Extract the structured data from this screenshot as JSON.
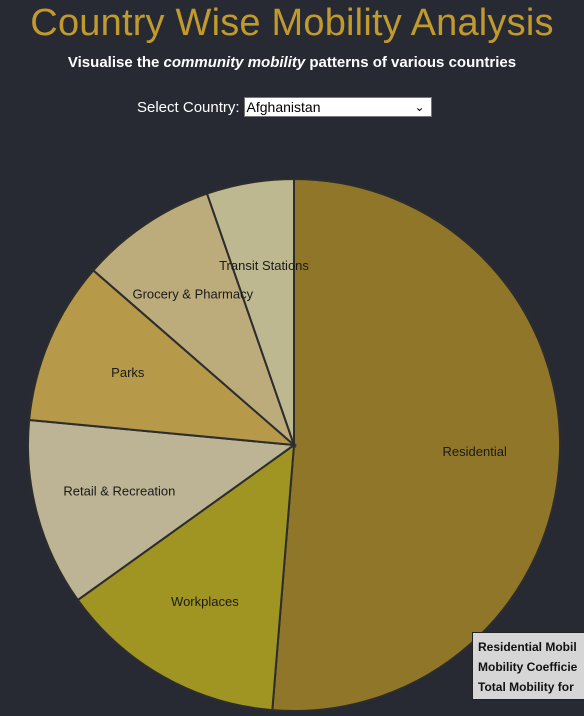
{
  "header": {
    "title": "Country Wise Mobility Analysis",
    "subtitle_pre": "Visualise the ",
    "subtitle_em": "community mobility",
    "subtitle_post": " patterns of various countries"
  },
  "country_select": {
    "label": "Select Country:",
    "selected": "Afghanistan"
  },
  "tooltip": {
    "lines": [
      "Residential Mobil",
      "Mobility Coefficie",
      "Total Mobility for"
    ]
  },
  "chart_data": {
    "type": "pie",
    "slices": [
      {
        "label": "Residential",
        "value": 51.3,
        "color": "#8f7628"
      },
      {
        "label": "Workplaces",
        "value": 13.8,
        "color": "#a09522"
      },
      {
        "label": "Retail & Recreation",
        "value": 11.4,
        "color": "#bdb496"
      },
      {
        "label": "Parks",
        "value": 9.9,
        "color": "#b69a4a"
      },
      {
        "label": "Grocery & Pharmacy",
        "value": 8.3,
        "color": "#bcac7b"
      },
      {
        "label": "Transit Stations",
        "value": 5.3,
        "color": "#bdb890"
      }
    ],
    "stroke": "#2d2d2d",
    "label_color": "#1a1a1a"
  }
}
